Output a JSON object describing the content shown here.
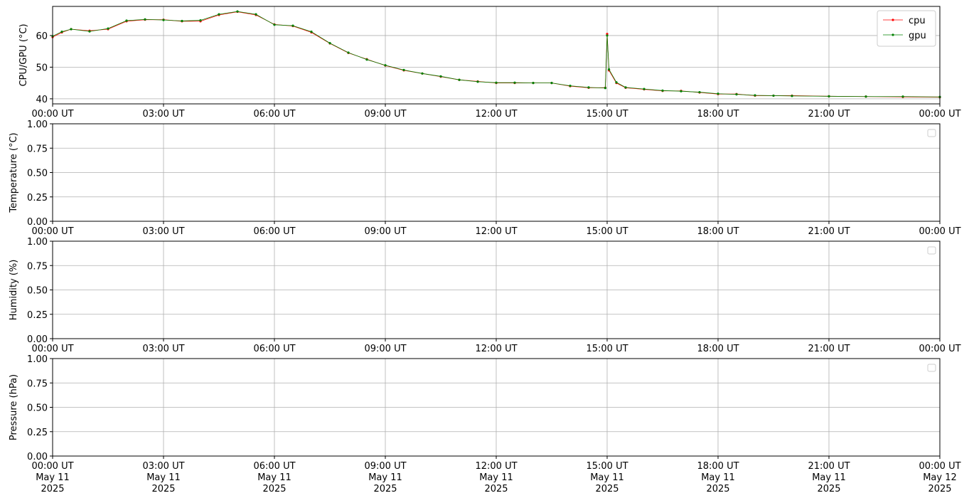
{
  "chart_data": [
    {
      "type": "line",
      "ylabel": "CPU/GPU (°C)",
      "xlim": [
        0,
        24
      ],
      "ylim": [
        38.4,
        69.2
      ],
      "yticks": [
        40,
        50,
        60
      ],
      "xticks": [
        {
          "value": 0,
          "label": "00:00 UT"
        },
        {
          "value": 3,
          "label": "03:00 UT"
        },
        {
          "value": 6,
          "label": "06:00 UT"
        },
        {
          "value": 9,
          "label": "09:00 UT"
        },
        {
          "value": 12,
          "label": "12:00 UT"
        },
        {
          "value": 15,
          "label": "15:00 UT"
        },
        {
          "value": 18,
          "label": "18:00 UT"
        },
        {
          "value": 21,
          "label": "21:00 UT"
        },
        {
          "value": 24,
          "label": "00:00 UT"
        }
      ],
      "grid": true,
      "legend": "upper right",
      "x": [
        0,
        0.25,
        0.5,
        1,
        1.5,
        2,
        2.5,
        3,
        3.5,
        4,
        4.5,
        5,
        5.5,
        6,
        6.5,
        7,
        7.5,
        8,
        8.5,
        9,
        9.5,
        10,
        10.5,
        11,
        11.5,
        12,
        12.5,
        13,
        13.5,
        14,
        14.5,
        14.95,
        15.0,
        15.05,
        15.25,
        15.5,
        16,
        16.5,
        17,
        17.5,
        18,
        18.5,
        19,
        19.5,
        20,
        21,
        22,
        23,
        24
      ],
      "series": [
        {
          "name": "cpu",
          "color": "#ff0000",
          "values": [
            59.5,
            61,
            62,
            61.5,
            62,
            64.5,
            65,
            65,
            64.5,
            64.5,
            66.5,
            67.5,
            66.5,
            63.5,
            63,
            61,
            57.5,
            54.5,
            52.5,
            50.5,
            49,
            48,
            47,
            46,
            45.5,
            45,
            45,
            45,
            45,
            44,
            43.5,
            43.5,
            60.5,
            49,
            45,
            43.5,
            43,
            42.5,
            42.5,
            42,
            41.5,
            41.5,
            41,
            41,
            41,
            40.8,
            40.7,
            40.6,
            40.5
          ]
        },
        {
          "name": "gpu",
          "color": "#008000",
          "values": [
            59.8,
            61.2,
            62,
            61.3,
            62.2,
            64.7,
            65.1,
            64.9,
            64.6,
            64.8,
            66.7,
            67.6,
            66.7,
            63.4,
            63.1,
            61.2,
            57.6,
            54.6,
            52.4,
            50.6,
            49.1,
            48,
            47.1,
            46,
            45.4,
            45.1,
            45.1,
            45,
            45,
            44.1,
            43.6,
            43.4,
            60,
            49.3,
            45.2,
            43.6,
            43.1,
            42.6,
            42.4,
            42.1,
            41.6,
            41.4,
            41.1,
            41,
            40.9,
            40.8,
            40.7,
            40.7,
            40.6
          ]
        }
      ]
    },
    {
      "type": "line",
      "ylabel": "Temperature (°C)",
      "xlim": [
        0,
        24
      ],
      "ylim": [
        0,
        1
      ],
      "yticks": [
        {
          "value": 0,
          "label": "0.00"
        },
        {
          "value": 0.25,
          "label": "0.25"
        },
        {
          "value": 0.5,
          "label": "0.50"
        },
        {
          "value": 0.75,
          "label": "0.75"
        },
        {
          "value": 1,
          "label": "1.00"
        }
      ],
      "xticks": [
        {
          "value": 0,
          "label": "00:00 UT"
        },
        {
          "value": 3,
          "label": "03:00 UT"
        },
        {
          "value": 6,
          "label": "06:00 UT"
        },
        {
          "value": 9,
          "label": "09:00 UT"
        },
        {
          "value": 12,
          "label": "12:00 UT"
        },
        {
          "value": 15,
          "label": "15:00 UT"
        },
        {
          "value": 18,
          "label": "18:00 UT"
        },
        {
          "value": 21,
          "label": "21:00 UT"
        },
        {
          "value": 24,
          "label": "00:00 UT"
        }
      ],
      "grid": true,
      "legend": "upper right",
      "x": [],
      "series": []
    },
    {
      "type": "line",
      "ylabel": "Humidity (%)",
      "xlim": [
        0,
        24
      ],
      "ylim": [
        0,
        1
      ],
      "yticks": [
        {
          "value": 0,
          "label": "0.00"
        },
        {
          "value": 0.25,
          "label": "0.25"
        },
        {
          "value": 0.5,
          "label": "0.50"
        },
        {
          "value": 0.75,
          "label": "0.75"
        },
        {
          "value": 1,
          "label": "1.00"
        }
      ],
      "xticks": [
        {
          "value": 0,
          "label": "00:00 UT"
        },
        {
          "value": 3,
          "label": "03:00 UT"
        },
        {
          "value": 6,
          "label": "06:00 UT"
        },
        {
          "value": 9,
          "label": "09:00 UT"
        },
        {
          "value": 12,
          "label": "12:00 UT"
        },
        {
          "value": 15,
          "label": "15:00 UT"
        },
        {
          "value": 18,
          "label": "18:00 UT"
        },
        {
          "value": 21,
          "label": "21:00 UT"
        },
        {
          "value": 24,
          "label": "00:00 UT"
        }
      ],
      "grid": true,
      "legend": "upper right",
      "x": [],
      "series": []
    },
    {
      "type": "line",
      "ylabel": "Pressure (hPa)",
      "xlim": [
        0,
        24
      ],
      "ylim": [
        0,
        1
      ],
      "yticks": [
        {
          "value": 0,
          "label": "0.00"
        },
        {
          "value": 0.25,
          "label": "0.25"
        },
        {
          "value": 0.5,
          "label": "0.50"
        },
        {
          "value": 0.75,
          "label": "0.75"
        },
        {
          "value": 1,
          "label": "1.00"
        }
      ],
      "xticks": [
        {
          "value": 0,
          "label": "00:00 UT\nMay 11\n2025"
        },
        {
          "value": 3,
          "label": "03:00 UT\nMay 11\n2025"
        },
        {
          "value": 6,
          "label": "06:00 UT\nMay 11\n2025"
        },
        {
          "value": 9,
          "label": "09:00 UT\nMay 11\n2025"
        },
        {
          "value": 12,
          "label": "12:00 UT\nMay 11\n2025"
        },
        {
          "value": 15,
          "label": "15:00 UT\nMay 11\n2025"
        },
        {
          "value": 18,
          "label": "18:00 UT\nMay 11\n2025"
        },
        {
          "value": 21,
          "label": "21:00 UT\nMay 11\n2025"
        },
        {
          "value": 24,
          "label": "00:00 UT\nMay 12\n2025"
        }
      ],
      "grid": true,
      "legend": "upper right",
      "x": [],
      "series": []
    }
  ]
}
